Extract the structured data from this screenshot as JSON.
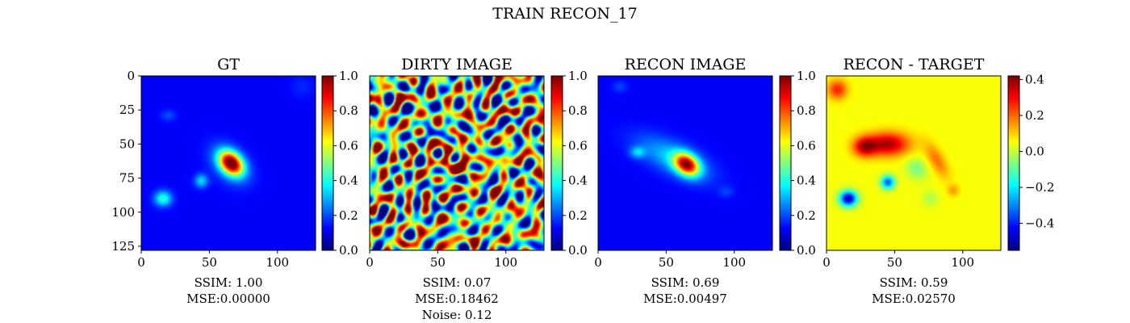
{
  "figure": {
    "suptitle": "TRAIN RECON_17"
  },
  "chart_data": [
    {
      "type": "heatmap",
      "title": "GT",
      "colormap": "jet",
      "xlim": [
        0,
        128
      ],
      "ylim": [
        128,
        0
      ],
      "x_ticks": [
        "0",
        "50",
        "100"
      ],
      "y_ticks": [
        "0",
        "25",
        "50",
        "75",
        "100",
        "125"
      ],
      "colorbar": {
        "range": [
          0.0,
          1.0
        ],
        "ticks": [
          "0.0",
          "0.2",
          "0.4",
          "0.6",
          "0.8",
          "1.0"
        ]
      },
      "background": 0.12,
      "blobs": [
        {
          "x": 66,
          "y": 64,
          "sx": 7,
          "sy": 5,
          "rot": 45,
          "amp": 0.85
        },
        {
          "x": 65,
          "y": 65,
          "sx": 12,
          "sy": 8,
          "rot": 45,
          "amp": 0.15
        },
        {
          "x": 16,
          "y": 90,
          "sx": 4.5,
          "sy": 4,
          "rot": 0,
          "amp": 0.3
        },
        {
          "x": 44,
          "y": 77,
          "sx": 3.5,
          "sy": 3.5,
          "rot": 0,
          "amp": 0.22
        },
        {
          "x": 20,
          "y": 29,
          "sx": 4,
          "sy": 3,
          "rot": 0,
          "amp": 0.08
        },
        {
          "x": 118,
          "y": 8,
          "sx": 6,
          "sy": 6,
          "rot": 0,
          "amp": 0.04
        }
      ],
      "caption": [
        "SSIM: 1.00",
        "MSE:0.00000"
      ]
    },
    {
      "type": "heatmap",
      "title": "DIRTY IMAGE",
      "colormap": "jet",
      "xlim": [
        0,
        128
      ],
      "ylim": [
        128,
        0
      ],
      "x_ticks": [
        "0",
        "50",
        "100"
      ],
      "y_ticks": [],
      "colorbar": {
        "range": [
          0.0,
          1.0
        ],
        "ticks": [
          "0.0",
          "0.2",
          "0.4",
          "0.6",
          "0.8",
          "1.0"
        ]
      },
      "background": 0.5,
      "noise": {
        "amplitude": 0.32,
        "wavelength": 14,
        "seed": 17
      },
      "blobs": [
        {
          "x": 66,
          "y": 66,
          "sx": 6,
          "sy": 6,
          "rot": 45,
          "amp": 0.35
        },
        {
          "x": 56,
          "y": 56,
          "sx": 5,
          "sy": 4,
          "rot": 0,
          "amp": 0.25
        }
      ],
      "caption": [
        "SSIM: 0.07",
        "MSE:0.18462",
        "Noise: 0.12"
      ]
    },
    {
      "type": "heatmap",
      "title": "RECON IMAGE",
      "colormap": "jet",
      "xlim": [
        0,
        128
      ],
      "ylim": [
        128,
        0
      ],
      "x_ticks": [
        "0",
        "50",
        "100"
      ],
      "y_ticks": [],
      "colorbar": {
        "range": [
          0.0,
          1.0
        ],
        "ticks": [
          "0.0",
          "0.2",
          "0.4",
          "0.6",
          "0.8",
          "1.0"
        ]
      },
      "background": 0.12,
      "blobs": [
        {
          "x": 65,
          "y": 65,
          "sx": 7,
          "sy": 5,
          "rot": 35,
          "amp": 0.75
        },
        {
          "x": 55,
          "y": 60,
          "sx": 20,
          "sy": 8,
          "rot": 25,
          "amp": 0.2
        },
        {
          "x": 29,
          "y": 56,
          "sx": 4,
          "sy": 3,
          "rot": 0,
          "amp": 0.18
        },
        {
          "x": 16,
          "y": 8,
          "sx": 4,
          "sy": 3,
          "rot": 0,
          "amp": 0.07
        },
        {
          "x": 94,
          "y": 85,
          "sx": 4,
          "sy": 3,
          "rot": 0,
          "amp": 0.06
        }
      ],
      "caption": [
        "SSIM: 0.69",
        "MSE:0.00497"
      ]
    },
    {
      "type": "heatmap",
      "title": "RECON - TARGET",
      "colormap": "jet",
      "xlim": [
        0,
        128
      ],
      "ylim": [
        128,
        0
      ],
      "x_ticks": [
        "0",
        "50",
        "100"
      ],
      "y_ticks": [],
      "colorbar": {
        "range": [
          -0.55,
          0.42
        ],
        "ticks": [
          "−0.4",
          "−0.2",
          "0.0",
          "0.2",
          "0.4"
        ],
        "tick_values": [
          -0.4,
          -0.2,
          0.0,
          0.2,
          0.4
        ]
      },
      "background": 0.05,
      "blobs": [
        {
          "x": 45,
          "y": 50,
          "sx": 11,
          "sy": 6,
          "rot": 0,
          "amp": 0.33
        },
        {
          "x": 28,
          "y": 52,
          "sx": 6,
          "sy": 5,
          "rot": 0,
          "amp": 0.28
        },
        {
          "x": 8,
          "y": 10,
          "sx": 5,
          "sy": 5,
          "rot": 0,
          "amp": 0.22
        },
        {
          "x": 81,
          "y": 62,
          "sx": 4,
          "sy": 10,
          "rot": -30,
          "amp": 0.14
        },
        {
          "x": 93,
          "y": 84,
          "sx": 3,
          "sy": 3,
          "rot": 0,
          "amp": 0.1
        },
        {
          "x": 16,
          "y": 90,
          "sx": 4.5,
          "sy": 4,
          "rot": 0,
          "amp": -0.55
        },
        {
          "x": 45,
          "y": 78,
          "sx": 3.5,
          "sy": 3.5,
          "rot": 0,
          "amp": -0.4
        },
        {
          "x": 66,
          "y": 68,
          "sx": 6,
          "sy": 5,
          "rot": 45,
          "amp": -0.12
        },
        {
          "x": 76,
          "y": 90,
          "sx": 4,
          "sy": 4,
          "rot": 0,
          "amp": -0.07
        }
      ],
      "caption": [
        "SSIM: 0.59",
        "MSE:0.02570"
      ]
    }
  ]
}
